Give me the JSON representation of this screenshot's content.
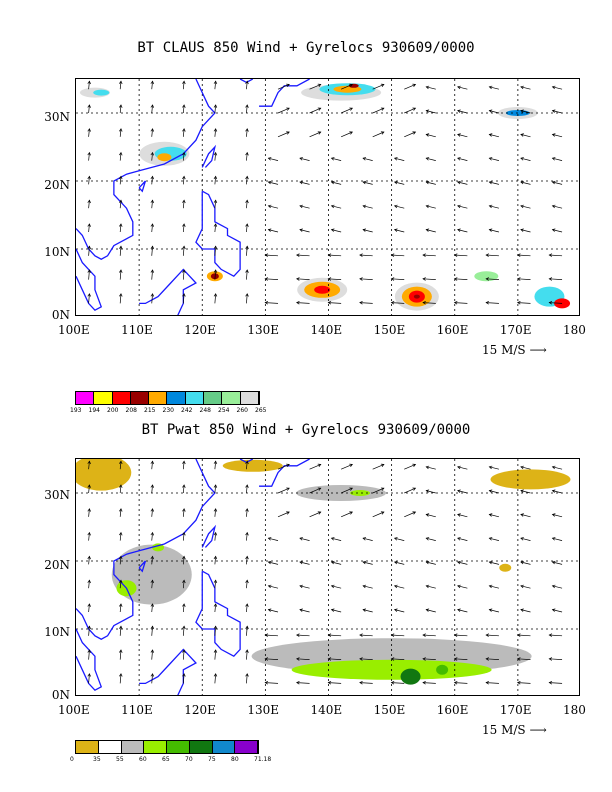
{
  "panels": [
    {
      "title": "BT CLAUS 850 Wind + Gyrelocs 930609/0000",
      "y_labels": [
        "30N",
        "20N",
        "10N",
        "0N"
      ],
      "x_labels": [
        "100E",
        "110E",
        "120E",
        "130E",
        "140E",
        "150E",
        "160E",
        "170E",
        "180"
      ],
      "scale_label": "15 M/S",
      "legend": {
        "colors": [
          "#ff00ff",
          "#ffff00",
          "#ff0000",
          "#990000",
          "#ffaa00",
          "#0088dd",
          "#44ddee",
          "#66cc88",
          "#99ee99",
          "#dddddd"
        ],
        "ticks": [
          "193",
          "194",
          "200",
          "208",
          "215",
          "230",
          "242",
          "248",
          "254",
          "260",
          "265"
        ]
      }
    },
    {
      "title": "BT Pwat 850 Wind + Gyrelocs 930609/0000",
      "y_labels": [
        "30N",
        "20N",
        "10N",
        "0N"
      ],
      "x_labels": [
        "100E",
        "110E",
        "120E",
        "130E",
        "140E",
        "150E",
        "160E",
        "170E",
        "180"
      ],
      "scale_label": "15 M/S",
      "legend": {
        "colors": [
          "#ddb317",
          "#ffffff",
          "#bbbbbb",
          "#99ee00",
          "#44bb00",
          "#117711",
          "#1188cc",
          "#8800cc"
        ],
        "ticks": [
          "0",
          "35",
          "55",
          "60",
          "65",
          "70",
          "75",
          "80",
          "71.18"
        ]
      }
    }
  ]
}
